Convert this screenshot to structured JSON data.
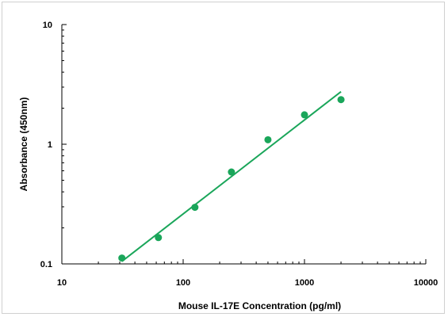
{
  "chart_data": {
    "type": "scatter",
    "xlabel": "Mouse IL-17E Concentration (pg/ml)",
    "ylabel": "Absorbance (450nm)",
    "xscale": "log",
    "yscale": "log",
    "xlim": [
      10,
      10000
    ],
    "ylim": [
      0.1,
      10
    ],
    "x_ticks": [
      "10",
      "100",
      "1000",
      "10000"
    ],
    "y_ticks": [
      "0.1",
      "1",
      "10"
    ],
    "grid": false,
    "legend": "none",
    "series": [
      {
        "x": [
          31.25,
          62.5,
          125,
          250,
          500,
          1000,
          2000
        ],
        "y": [
          0.112,
          0.166,
          0.297,
          0.586,
          1.09,
          1.76,
          2.36
        ]
      }
    ],
    "fit_line": {
      "x": [
        31.25,
        2000
      ],
      "y": [
        0.105,
        2.75
      ]
    },
    "colors": {
      "points": "#1aa65a",
      "line": "#1aa65a",
      "axis": "#000000"
    }
  }
}
